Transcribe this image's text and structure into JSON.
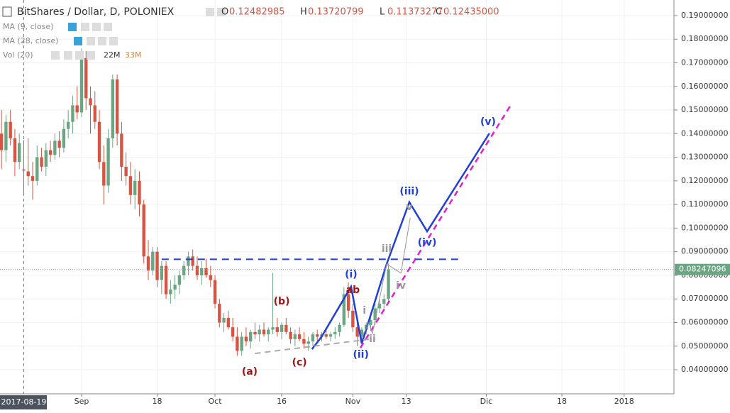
{
  "header": {
    "title": "BitShares / Dollar, D, POLONIEX",
    "ohlc": [
      {
        "key": "O",
        "value": "0.12482985"
      },
      {
        "key": "H",
        "value": "0.13720799"
      },
      {
        "key": "L",
        "value": "0.11373277"
      },
      {
        "key": "C",
        "value": "0.12435000"
      }
    ]
  },
  "indicators": [
    {
      "name": "MA (9, close)"
    },
    {
      "name": "MA (28, close)"
    },
    {
      "name": "Vol (20)",
      "values": [
        "22M",
        "33M"
      ]
    }
  ],
  "chart_data": {
    "type": "candlestick",
    "x": [
      -5,
      -4,
      -3,
      -2,
      -1,
      0,
      1,
      2,
      3,
      4,
      5,
      6,
      7,
      8,
      9,
      10,
      11,
      12,
      13,
      14,
      15,
      16,
      17,
      18,
      19,
      20,
      21,
      22,
      23,
      24,
      25,
      26,
      27,
      28,
      29,
      30,
      31,
      32,
      33,
      34,
      35,
      36,
      37,
      38,
      39,
      40,
      41,
      42,
      43,
      44,
      45,
      46,
      47,
      48,
      49,
      50,
      51,
      52,
      53,
      54,
      55,
      56,
      57,
      58,
      59,
      60,
      61,
      62,
      63,
      64,
      65,
      66,
      67,
      68,
      69,
      70,
      71,
      72,
      73,
      74,
      75,
      76,
      77,
      78,
      79,
      80,
      81,
      82
    ],
    "open": [
      0.14,
      0.133,
      0.145,
      0.138,
      0.128,
      0.12482985,
      0.124,
      0.122,
      0.12,
      0.13,
      0.126,
      0.133,
      0.131,
      0.137,
      0.134,
      0.142,
      0.145,
      0.152,
      0.149,
      0.172,
      0.155,
      0.152,
      0.145,
      0.128,
      0.118,
      0.138,
      0.163,
      0.14,
      0.126,
      0.122,
      0.114,
      0.12,
      0.11,
      0.088,
      0.082,
      0.09,
      0.078,
      0.084,
      0.072,
      0.074,
      0.076,
      0.08,
      0.084,
      0.088,
      0.084,
      0.08,
      0.083,
      0.08,
      0.078,
      0.068,
      0.06,
      0.062,
      0.058,
      0.054,
      0.048,
      0.054,
      0.052,
      0.056,
      0.055,
      0.057,
      0.055,
      0.057,
      0.058,
      0.056,
      0.059,
      0.056,
      0.053,
      0.055,
      0.053,
      0.051,
      0.052,
      0.055,
      0.054,
      0.055,
      0.054,
      0.055,
      0.056,
      0.059,
      0.072,
      0.065,
      0.058,
      0.054,
      0.057,
      0.059,
      0.061,
      0.066,
      0.068,
      0.07
    ],
    "high": [
      0.15,
      0.148,
      0.15,
      0.142,
      0.14,
      0.13720799,
      0.138,
      0.128,
      0.135,
      0.134,
      0.136,
      0.137,
      0.14,
      0.141,
      0.146,
      0.15,
      0.156,
      0.16,
      0.176,
      0.175,
      0.16,
      0.158,
      0.15,
      0.135,
      0.142,
      0.165,
      0.165,
      0.145,
      0.132,
      0.128,
      0.125,
      0.124,
      0.112,
      0.095,
      0.092,
      0.092,
      0.086,
      0.086,
      0.078,
      0.08,
      0.082,
      0.086,
      0.09,
      0.091,
      0.088,
      0.086,
      0.087,
      0.084,
      0.08,
      0.07,
      0.064,
      0.065,
      0.062,
      0.058,
      0.056,
      0.058,
      0.057,
      0.06,
      0.059,
      0.06,
      0.058,
      0.081,
      0.062,
      0.06,
      0.062,
      0.058,
      0.057,
      0.058,
      0.056,
      0.054,
      0.056,
      0.057,
      0.056,
      0.057,
      0.056,
      0.058,
      0.06,
      0.075,
      0.077,
      0.068,
      0.06,
      0.058,
      0.06,
      0.063,
      0.068,
      0.07,
      0.072,
      0.085
    ],
    "low": [
      0.125,
      0.128,
      0.135,
      0.122,
      0.125,
      0.11373277,
      0.118,
      0.112,
      0.118,
      0.124,
      0.122,
      0.128,
      0.129,
      0.13,
      0.132,
      0.138,
      0.14,
      0.146,
      0.147,
      0.15,
      0.14,
      0.142,
      0.125,
      0.11,
      0.115,
      0.134,
      0.135,
      0.12,
      0.118,
      0.11,
      0.108,
      0.105,
      0.085,
      0.078,
      0.08,
      0.075,
      0.072,
      0.07,
      0.068,
      0.07,
      0.072,
      0.078,
      0.08,
      0.082,
      0.078,
      0.076,
      0.079,
      0.075,
      0.066,
      0.058,
      0.056,
      0.057,
      0.052,
      0.046,
      0.046,
      0.05,
      0.049,
      0.053,
      0.052,
      0.054,
      0.052,
      0.055,
      0.054,
      0.053,
      0.055,
      0.051,
      0.05,
      0.052,
      0.049,
      0.048,
      0.05,
      0.052,
      0.052,
      0.053,
      0.052,
      0.053,
      0.054,
      0.058,
      0.062,
      0.056,
      0.05,
      0.052,
      0.055,
      0.057,
      0.059,
      0.064,
      0.066,
      0.068
    ],
    "close": [
      0.133,
      0.145,
      0.138,
      0.128,
      0.136,
      0.12435,
      0.122,
      0.12,
      0.13,
      0.126,
      0.133,
      0.131,
      0.137,
      0.134,
      0.142,
      0.145,
      0.152,
      0.149,
      0.172,
      0.155,
      0.152,
      0.145,
      0.128,
      0.118,
      0.138,
      0.163,
      0.14,
      0.126,
      0.122,
      0.114,
      0.12,
      0.11,
      0.088,
      0.082,
      0.09,
      0.078,
      0.084,
      0.072,
      0.074,
      0.076,
      0.08,
      0.084,
      0.088,
      0.084,
      0.08,
      0.083,
      0.08,
      0.078,
      0.068,
      0.06,
      0.062,
      0.058,
      0.054,
      0.048,
      0.054,
      0.052,
      0.056,
      0.055,
      0.057,
      0.055,
      0.057,
      0.058,
      0.056,
      0.059,
      0.056,
      0.053,
      0.055,
      0.053,
      0.051,
      0.052,
      0.055,
      0.054,
      0.055,
      0.054,
      0.055,
      0.056,
      0.059,
      0.072,
      0.065,
      0.058,
      0.054,
      0.057,
      0.059,
      0.061,
      0.066,
      0.068,
      0.07,
      0.08247096
    ],
    "up_color": "#6ba583",
    "down_color": "#d75442",
    "xlim": [
      -5.34,
      146.2
    ],
    "xticks": [
      {
        "value": 13,
        "label": "Sep"
      },
      {
        "value": 30,
        "label": "18"
      },
      {
        "value": 43,
        "label": "Oct"
      },
      {
        "value": 58,
        "label": "16"
      },
      {
        "value": 74,
        "label": "Nov"
      },
      {
        "value": 86,
        "label": "13"
      },
      {
        "value": 104,
        "label": "Dic"
      },
      {
        "value": 121,
        "label": "18"
      },
      {
        "value": 135,
        "label": "2018"
      }
    ],
    "ylim": [
      0.0298,
      0.1966
    ],
    "yticks": [
      {
        "value": 0.04,
        "label": "0.04000000"
      },
      {
        "value": 0.05,
        "label": "0.05000000"
      },
      {
        "value": 0.06,
        "label": "0.06000000"
      },
      {
        "value": 0.07,
        "label": "0.07000000"
      },
      {
        "value": 0.08,
        "label": "0.08000000"
      },
      {
        "value": 0.09,
        "label": "0.09000000"
      },
      {
        "value": 0.1,
        "label": "0.10000000"
      },
      {
        "value": 0.11,
        "label": "0.11000000"
      },
      {
        "value": 0.12,
        "label": "0.12000000"
      },
      {
        "value": 0.13,
        "label": "0.13000000"
      },
      {
        "value": 0.14,
        "label": "0.14000000"
      },
      {
        "value": 0.15,
        "label": "0.15000000"
      },
      {
        "value": 0.16,
        "label": "0.16000000"
      },
      {
        "value": 0.17,
        "label": "0.17000000"
      },
      {
        "value": 0.18,
        "label": "0.18000000"
      },
      {
        "value": 0.19,
        "label": "0.19000000"
      }
    ],
    "grid": true,
    "last_price": {
      "value": 0.08247096,
      "color": "#6ba583"
    },
    "crosshair": {
      "x": 0,
      "label": "2017-08-19"
    },
    "lines": [
      {
        "color": "#1f3fd6",
        "width": 2.5,
        "dash": "",
        "x": [
          64.8,
          66.9,
          73.6,
          76,
          81.6,
          86.7,
          90.7,
          104.7
        ],
        "y": [
          0.0487,
          0.0538,
          0.0752,
          0.0511,
          0.0848,
          0.111,
          0.0986,
          0.1401
        ]
      },
      {
        "color": "#e020d0",
        "width": 2.5,
        "dash": "8 6",
        "x": [
          75.7,
          109.5
        ],
        "y": [
          0.0493,
          0.1521
        ]
      },
      {
        "color": "#1f3fd6",
        "width": 2,
        "dash": "10 7",
        "x": [
          31,
          98.6
        ],
        "y": [
          0.0868,
          0.0868
        ]
      },
      {
        "color": "#aaaaaa",
        "width": 2,
        "dash": "8 6",
        "x": [
          52,
          77.6
        ],
        "y": [
          0.0469,
          0.0529
        ]
      },
      {
        "color": "#999999",
        "width": 1,
        "dash": "",
        "x": [
          76,
          77.6,
          78.4,
          81.6,
          84.8,
          86.9
        ],
        "y": [
          0.0538,
          0.0598,
          0.0553,
          0.0848,
          0.0809,
          0.1043
        ]
      }
    ],
    "annotations": [
      {
        "text": "(a)",
        "x": 50.8,
        "y": 0.0391,
        "color": "#a31515"
      },
      {
        "text": "(b)",
        "x": 58,
        "y": 0.0689,
        "color": "#a31515"
      },
      {
        "text": "(c)",
        "x": 62,
        "y": 0.043,
        "color": "#a31515"
      },
      {
        "text": "ab",
        "x": 74,
        "y": 0.0737,
        "color": "#a31515"
      },
      {
        "text": "(i)",
        "x": 73.6,
        "y": 0.0803,
        "color": "#1f3fd6"
      },
      {
        "text": "(ii)",
        "x": 75.8,
        "y": 0.0463,
        "color": "#1f3fd6"
      },
      {
        "text": "(iii)",
        "x": 86.7,
        "y": 0.1155,
        "color": "#1f3fd6"
      },
      {
        "text": "(iv)",
        "x": 90.7,
        "y": 0.0938,
        "color": "#1f3fd6"
      },
      {
        "text": "(v)",
        "x": 104.4,
        "y": 0.1449,
        "color": "#1f3fd6"
      },
      {
        "text": "i",
        "x": 76.6,
        "y": 0.065,
        "color": "#999999"
      },
      {
        "text": "ii",
        "x": 78.4,
        "y": 0.0529,
        "color": "#999999"
      },
      {
        "text": "iii",
        "x": 81.6,
        "y": 0.0911,
        "color": "#999999"
      },
      {
        "text": "iv",
        "x": 84.8,
        "y": 0.0755,
        "color": "#999999"
      },
      {
        "text": "v",
        "x": 86.7,
        "y": 0.1088,
        "color": "#999999"
      }
    ]
  }
}
